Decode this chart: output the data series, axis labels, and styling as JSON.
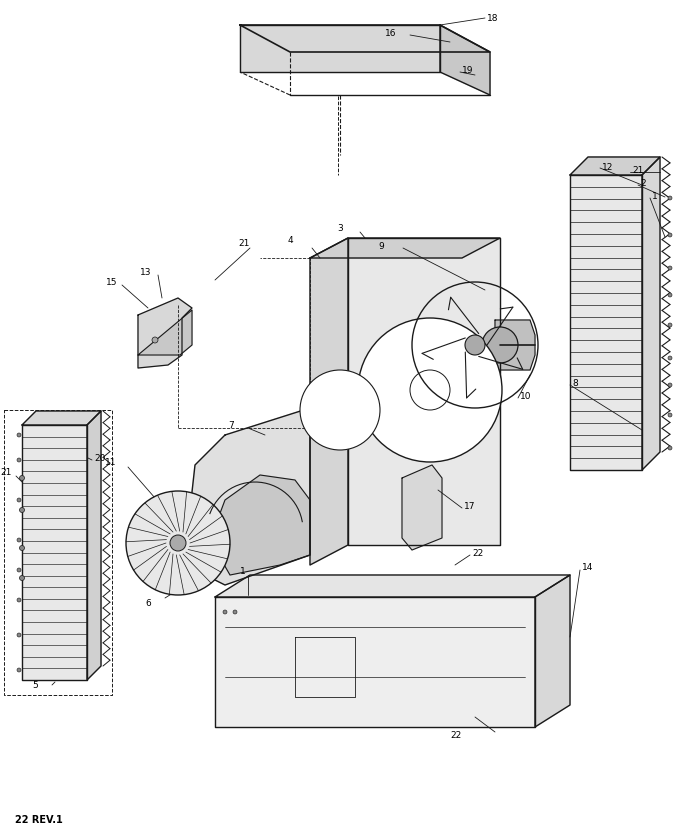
{
  "footer_text": "22 REV.1",
  "bg_color": "#ffffff",
  "line_color": "#1a1a1a",
  "fig_width": 6.8,
  "fig_height": 8.34,
  "dpi": 100
}
